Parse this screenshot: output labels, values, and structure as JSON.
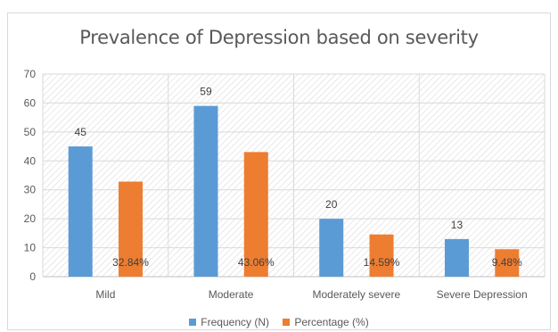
{
  "chart_data": {
    "type": "bar",
    "title": "Prevalence of Depression based on severity",
    "categories": [
      "Mild",
      "Moderate",
      "Moderately severe",
      "Severe Depression"
    ],
    "series": [
      {
        "name": "Frequency (N)",
        "values": [
          45,
          59,
          20,
          13
        ],
        "labels": [
          "45",
          "59",
          "20",
          "13"
        ],
        "color": "#5b9bd5"
      },
      {
        "name": "Percentage (%)",
        "values": [
          32.84,
          43.06,
          14.59,
          9.48
        ],
        "labels": [
          "32.84%",
          "43.06%",
          "14.59%",
          "9.48%"
        ],
        "color": "#ed7d31"
      }
    ],
    "ylim": [
      0,
      70
    ],
    "yticks": [
      "0",
      "10",
      "20",
      "30",
      "40",
      "50",
      "60",
      "70"
    ],
    "grid": true,
    "legend_position": "bottom"
  }
}
